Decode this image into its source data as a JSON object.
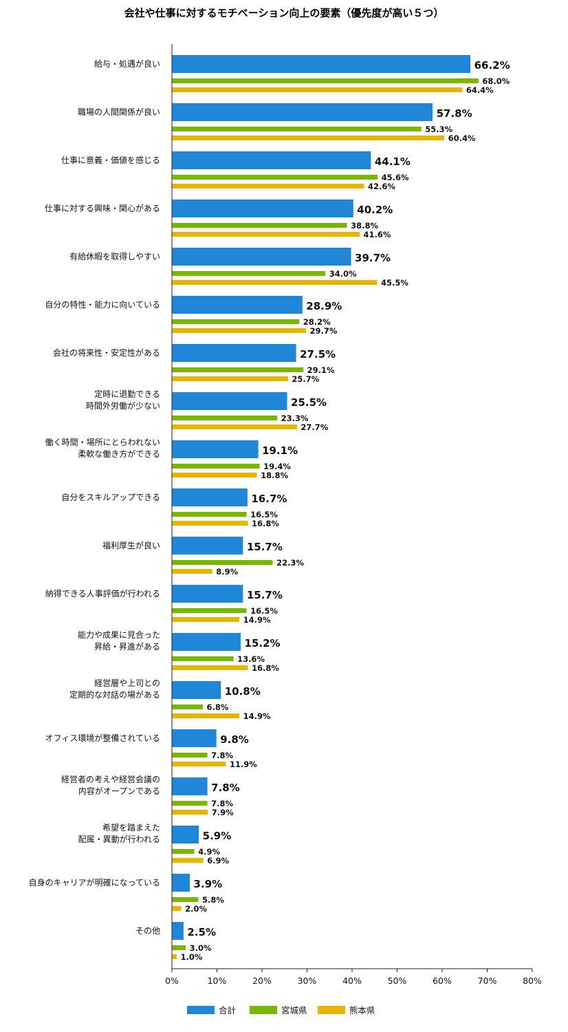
{
  "chart_data": {
    "type": "bar",
    "orientation": "horizontal",
    "title": "会社や仕事に対するモチベーション向上の要素（優先度が高い５つ）",
    "categories": [
      [
        "給与・処遇が良い"
      ],
      [
        "職場の人間関係が良い"
      ],
      [
        "仕事に意義・価値を感じる"
      ],
      [
        "仕事に対する興味・関心がある"
      ],
      [
        "有給休暇を取得しやすい"
      ],
      [
        "自分の特性・能力に向いている"
      ],
      [
        "会社の将来性・安定性がある"
      ],
      [
        "定時に退勤できる",
        "時間外労働が少ない"
      ],
      [
        "働く時間・場所にとらわれない",
        "柔軟な働き方ができる"
      ],
      [
        "自分をスキルアップできる"
      ],
      [
        "福利厚生が良い"
      ],
      [
        "納得できる人事評価が行われる"
      ],
      [
        "能力や成果に見合った",
        "昇給・昇進がある"
      ],
      [
        "経営層や上司との",
        "定期的な対話の場がある"
      ],
      [
        "オフィス環境が整備されている"
      ],
      [
        "経営者の考えや経営会議の",
        "内容がオープンである"
      ],
      [
        "希望を踏まえた",
        "配属・異動が行われる"
      ],
      [
        "自身のキャリアが明確になっている"
      ],
      [
        "その他"
      ]
    ],
    "series": [
      {
        "name": "合計",
        "color": "#1f86d8",
        "values": [
          66.2,
          57.8,
          44.1,
          40.2,
          39.7,
          28.9,
          27.5,
          25.5,
          19.1,
          16.7,
          15.7,
          15.7,
          15.2,
          10.8,
          9.8,
          7.8,
          5.9,
          3.9,
          2.5
        ],
        "labels": [
          "66.2%",
          "57.8%",
          "44.1%",
          "40.2%",
          "39.7%",
          "28.9%",
          "27.5%",
          "25.5%",
          "19.1%",
          "16.7%",
          "15.7%",
          "15.7%",
          "15.2%",
          "10.8%",
          "9.8%",
          "7.8%",
          "5.9%",
          "3.9%",
          "2.5%"
        ]
      },
      {
        "name": "宮城県",
        "color": "#78b800",
        "values": [
          68.0,
          55.3,
          45.6,
          38.8,
          34.0,
          28.2,
          29.1,
          23.3,
          19.4,
          16.5,
          22.3,
          16.5,
          13.6,
          6.8,
          7.8,
          7.8,
          4.9,
          5.8,
          3.0
        ],
        "labels": [
          "68.0%",
          "55.3%",
          "45.6%",
          "38.8%",
          "34.0%",
          "28.2%",
          "29.1%",
          "23.3%",
          "19.4%",
          "16.5%",
          "22.3%",
          "16.5%",
          "13.6%",
          "6.8%",
          "7.8%",
          "7.8%",
          "4.9%",
          "5.8%",
          "3.0%"
        ]
      },
      {
        "name": "熊本県",
        "color": "#e9b400",
        "values": [
          64.4,
          60.4,
          42.6,
          41.6,
          45.5,
          29.7,
          25.7,
          27.7,
          18.8,
          16.8,
          8.9,
          14.9,
          16.8,
          14.9,
          11.9,
          7.9,
          6.9,
          2.0,
          1.0
        ],
        "labels": [
          "64.4%",
          "60.4%",
          "42.6%",
          "41.6%",
          "45.5%",
          "29.7%",
          "25.7%",
          "27.7%",
          "18.8%",
          "16.8%",
          "8.9%",
          "14.9%",
          "16.8%",
          "14.9%",
          "11.9%",
          "7.9%",
          "6.9%",
          "2.0%",
          "1.0%"
        ]
      }
    ],
    "xlim": [
      0,
      80
    ],
    "xticks": [
      "0%",
      "10%",
      "20%",
      "30%",
      "40%",
      "50%",
      "60%",
      "70%",
      "80%"
    ],
    "grid": false,
    "legend_position": "bottom"
  }
}
